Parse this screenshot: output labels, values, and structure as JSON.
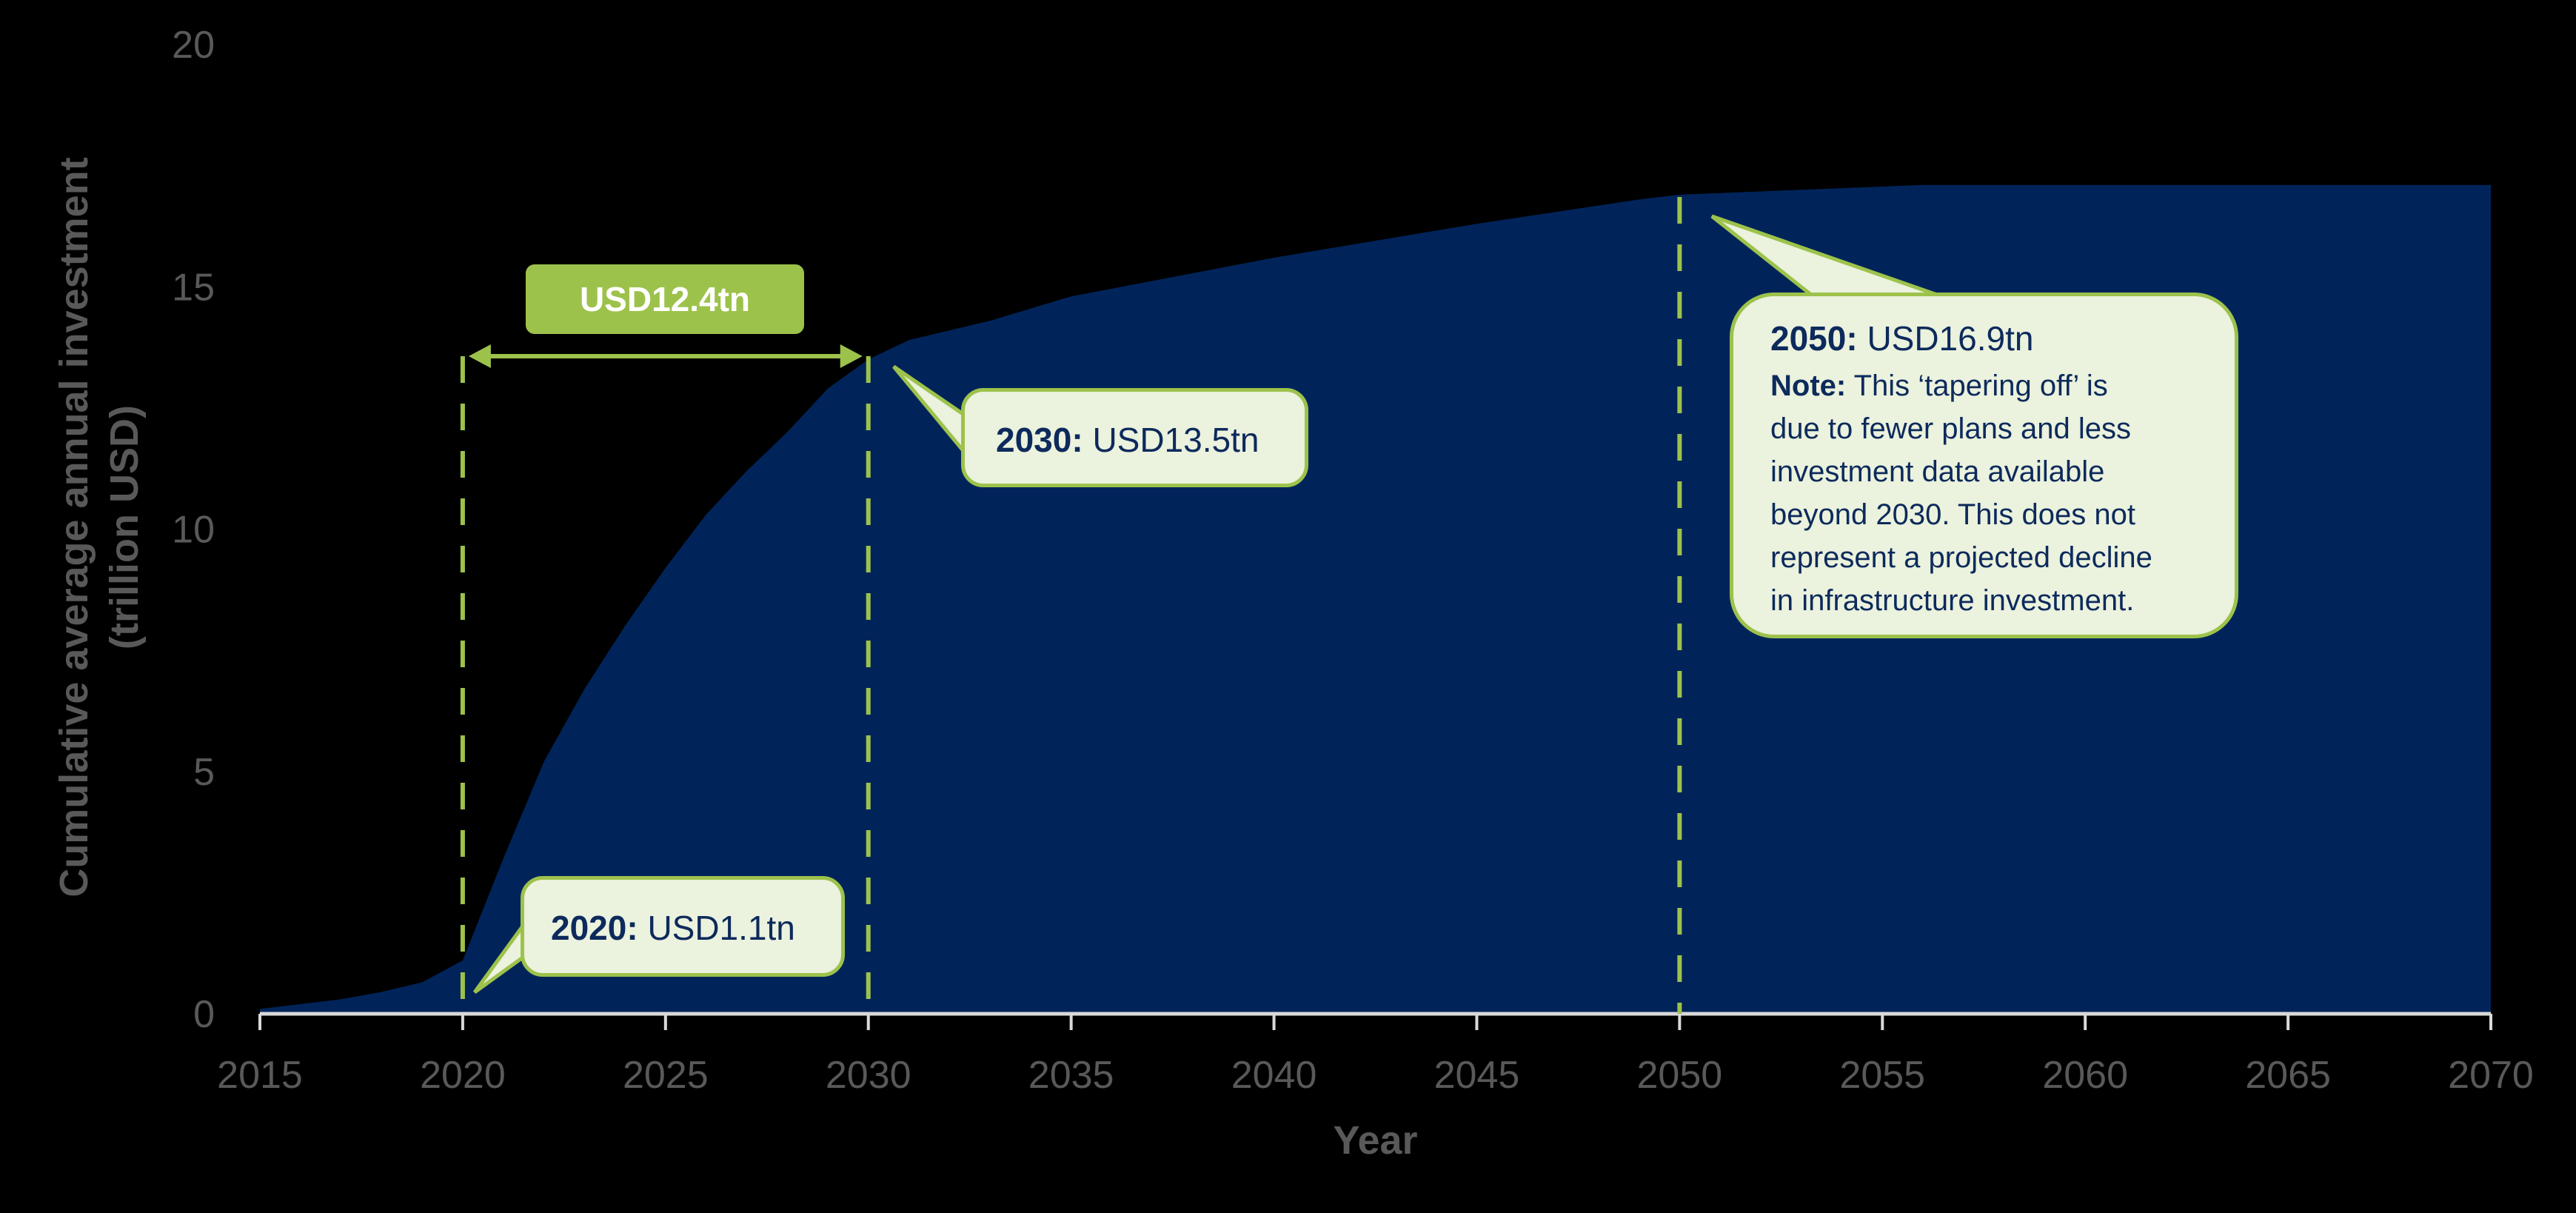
{
  "chart_data": {
    "type": "area",
    "title": "",
    "xlabel": "Year",
    "ylabel": "Cumulative average annual investment (trillion USD)",
    "ylabel_lines": [
      "Cumulative average annual investment",
      "(trillion USD)"
    ],
    "xlim": [
      2015,
      2070
    ],
    "ylim": [
      0,
      20
    ],
    "x_ticks": [
      2015,
      2020,
      2025,
      2030,
      2035,
      2040,
      2045,
      2050,
      2055,
      2060,
      2065,
      2070
    ],
    "y_ticks": [
      0,
      5,
      10,
      15,
      20
    ],
    "grid": false,
    "legend": null,
    "series": [
      {
        "name": "Cumulative average annual investment",
        "color": "#00245A",
        "x": [
          2015,
          2016,
          2017,
          2018,
          2019,
          2020,
          2021,
          2022,
          2023,
          2024,
          2025,
          2026,
          2027,
          2028,
          2029,
          2030,
          2031,
          2033,
          2035,
          2040,
          2045,
          2049,
          2050,
          2053,
          2056,
          2070
        ],
        "values": [
          0.1,
          0.2,
          0.3,
          0.45,
          0.65,
          1.1,
          3.2,
          5.2,
          6.7,
          8.0,
          9.2,
          10.3,
          11.2,
          12.0,
          12.9,
          13.5,
          13.9,
          14.3,
          14.8,
          15.6,
          16.3,
          16.8,
          16.9,
          17.0,
          17.1,
          17.1
        ]
      }
    ],
    "annotations": [
      {
        "year": 2020,
        "label": "2020:",
        "value_text": "USD1.1tn",
        "value": 1.1
      },
      {
        "year": 2030,
        "label": "2030:",
        "value_text": "USD13.5tn",
        "value": 13.5
      },
      {
        "year": 2050,
        "label": "2050:",
        "value_text": "USD16.9tn",
        "value": 16.9,
        "note_label": "Note:",
        "note_text": "This ‘tapering off’ is due to fewer plans and less investment data available beyond 2030. This does not represent a projected decline in infrastructure investment."
      },
      {
        "type": "range",
        "from": 2020,
        "to": 2030,
        "label": "USD12.4tn"
      }
    ]
  },
  "colors": {
    "background": "#000000",
    "area_fill": "#00245A",
    "accent_green": "#9DC24B",
    "callout_fill": "#EBF2DD",
    "callout_text": "#0D2A5C",
    "axis_text": "#595959",
    "axis_line": "#D9D9D9"
  },
  "callouts": {
    "c2020": {
      "label": "2020:",
      "value": "USD1.1tn"
    },
    "c2030": {
      "label": "2030:",
      "value": "USD13.5tn"
    },
    "c2050": {
      "label": "2050:",
      "value": "USD16.9tn",
      "note_label": "Note:",
      "note_lines": [
        " This ‘tapering off’ is",
        "due to fewer plans and less",
        "investment data available",
        "beyond 2030. This does not",
        "represent a projected decline",
        "in infrastructure investment."
      ]
    },
    "range": {
      "label": "USD12.4tn"
    }
  }
}
